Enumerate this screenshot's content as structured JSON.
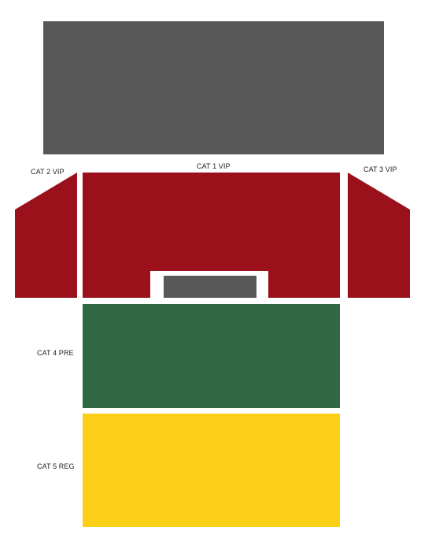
{
  "stage": {
    "name": "stage",
    "color": "#585858"
  },
  "sections": [
    {
      "id": "cat1",
      "label": "CAT 1 VIP",
      "color": "#9a111c"
    },
    {
      "id": "cat2",
      "label": "CAT 2 VIP",
      "color": "#9a111c"
    },
    {
      "id": "cat3",
      "label": "CAT 3 VIP",
      "color": "#9a111c"
    },
    {
      "id": "cat4",
      "label": "CAT 4 PRE",
      "color": "#2f6843"
    },
    {
      "id": "cat5",
      "label": "CAT 5 REG",
      "color": "#fccf17"
    }
  ],
  "control_booth": {
    "name": "control-booth",
    "color": "#585858",
    "frame_color": "#ffffff"
  }
}
